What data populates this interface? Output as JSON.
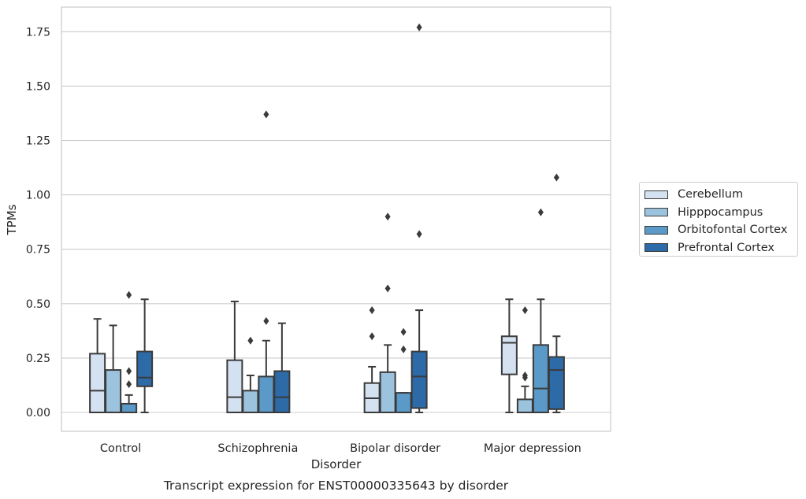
{
  "chart_data": {
    "type": "box",
    "title": "Transcript expression for ENST00000335643 by disorder",
    "xlabel": "Disorder",
    "ylabel": "TPMs",
    "ylim": [
      -0.085,
      1.86
    ],
    "yticks": [
      "0.00",
      "0.25",
      "0.50",
      "0.75",
      "1.00",
      "1.25",
      "1.50",
      "1.75"
    ],
    "grid": "horizontal",
    "legend_position": "right",
    "categories": [
      "Control",
      "Schizophrenia",
      "Bipolar disorder",
      "Major depression"
    ],
    "series": [
      {
        "name": "Cerebellum",
        "color": "#d3e1f0",
        "boxes": [
          {
            "category": "Control",
            "whislo": 0.0,
            "q1": 0.0,
            "med": 0.1,
            "q3": 0.27,
            "whishi": 0.43,
            "fliers": []
          },
          {
            "category": "Schizophrenia",
            "whislo": 0.0,
            "q1": 0.0,
            "med": 0.07,
            "q3": 0.24,
            "whishi": 0.51,
            "fliers": []
          },
          {
            "category": "Bipolar disorder",
            "whislo": 0.0,
            "q1": 0.0,
            "med": 0.065,
            "q3": 0.135,
            "whishi": 0.21,
            "fliers": [
              0.35,
              0.47
            ]
          },
          {
            "category": "Major depression",
            "whislo": 0.0,
            "q1": 0.175,
            "med": 0.32,
            "q3": 0.35,
            "whishi": 0.52,
            "fliers": []
          }
        ]
      },
      {
        "name": "Hipppocampus",
        "color": "#9cc3de",
        "boxes": [
          {
            "category": "Control",
            "whislo": 0.0,
            "q1": 0.0,
            "med": 0.0,
            "q3": 0.195,
            "whishi": 0.4,
            "fliers": []
          },
          {
            "category": "Schizophrenia",
            "whislo": 0.0,
            "q1": 0.0,
            "med": 0.0,
            "q3": 0.1,
            "whishi": 0.17,
            "fliers": [
              0.33
            ]
          },
          {
            "category": "Bipolar disorder",
            "whislo": 0.0,
            "q1": 0.0,
            "med": 0.0,
            "q3": 0.185,
            "whishi": 0.31,
            "fliers": [
              0.57,
              0.9
            ]
          },
          {
            "category": "Major depression",
            "whislo": 0.0,
            "q1": 0.0,
            "med": 0.0,
            "q3": 0.06,
            "whishi": 0.12,
            "fliers": [
              0.16,
              0.17,
              0.47
            ]
          }
        ]
      },
      {
        "name": "Orbitofontal Cortex",
        "color": "#5b9ac8",
        "boxes": [
          {
            "category": "Control",
            "whislo": 0.0,
            "q1": 0.0,
            "med": 0.0,
            "q3": 0.04,
            "whishi": 0.08,
            "fliers": [
              0.13,
              0.19,
              0.54
            ]
          },
          {
            "category": "Schizophrenia",
            "whislo": 0.0,
            "q1": 0.0,
            "med": 0.0,
            "q3": 0.165,
            "whishi": 0.33,
            "fliers": [
              0.42,
              1.37
            ]
          },
          {
            "category": "Bipolar disorder",
            "whislo": 0.0,
            "q1": 0.0,
            "med": 0.0,
            "q3": 0.09,
            "whishi": 0.09,
            "fliers": [
              0.29,
              0.37
            ]
          },
          {
            "category": "Major depression",
            "whislo": 0.0,
            "q1": 0.0,
            "med": 0.11,
            "q3": 0.31,
            "whishi": 0.52,
            "fliers": [
              0.92
            ]
          }
        ]
      },
      {
        "name": "Prefrontal Cortex",
        "color": "#2c6aa8",
        "boxes": [
          {
            "category": "Control",
            "whislo": 0.0,
            "q1": 0.12,
            "med": 0.16,
            "q3": 0.28,
            "whishi": 0.52,
            "fliers": []
          },
          {
            "category": "Schizophrenia",
            "whislo": 0.0,
            "q1": 0.0,
            "med": 0.07,
            "q3": 0.19,
            "whishi": 0.41,
            "fliers": []
          },
          {
            "category": "Bipolar disorder",
            "whislo": 0.0,
            "q1": 0.02,
            "med": 0.165,
            "q3": 0.28,
            "whishi": 0.47,
            "fliers": [
              0.82,
              1.77
            ]
          },
          {
            "category": "Major depression",
            "whislo": 0.0,
            "q1": 0.015,
            "med": 0.195,
            "q3": 0.255,
            "whishi": 0.35,
            "fliers": [
              1.08
            ]
          }
        ]
      }
    ]
  }
}
